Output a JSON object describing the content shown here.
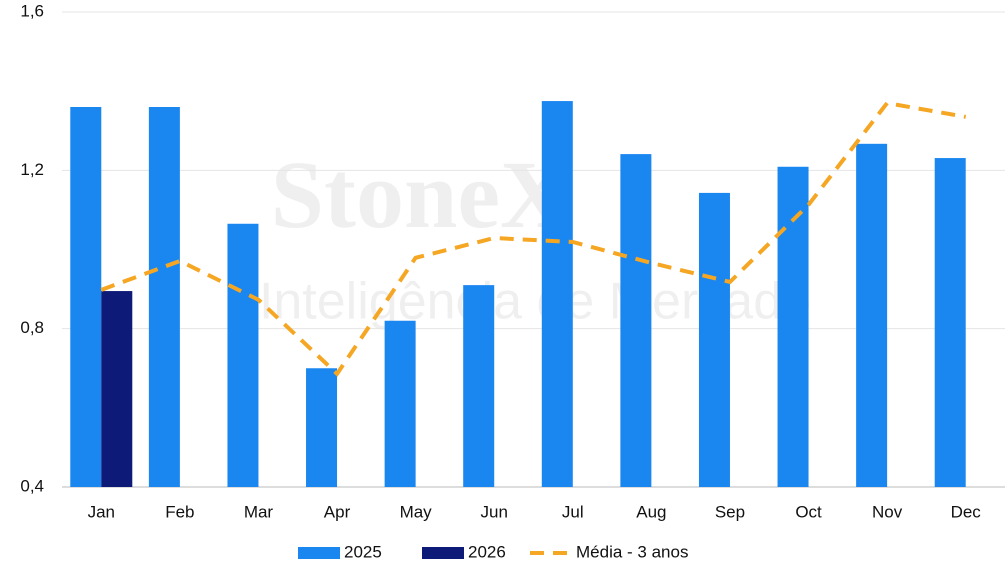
{
  "chart_data": {
    "type": "bar",
    "watermark": [
      "StoneX",
      "Inteligência de Mercado"
    ],
    "categories": [
      "Jan",
      "Feb",
      "Mar",
      "Apr",
      "May",
      "Jun",
      "Jul",
      "Aug",
      "Sep",
      "Oct",
      "Nov",
      "Dec"
    ],
    "series": [
      {
        "name": "2025",
        "color": "#1a86f0",
        "values": [
          1.36,
          1.36,
          1.065,
          0.7,
          0.82,
          0.91,
          1.375,
          1.241,
          1.143,
          1.209,
          1.267,
          1.231
        ]
      },
      {
        "name": "2026",
        "color": "#0d1a78",
        "values": [
          0.895,
          null,
          null,
          null,
          null,
          null,
          null,
          null,
          null,
          null,
          null,
          null
        ]
      },
      {
        "name": "Média - 3 anos",
        "color": "#f5a623",
        "type": "line",
        "dashed": true,
        "values": [
          0.898,
          0.971,
          0.873,
          0.686,
          0.979,
          1.029,
          1.019,
          0.966,
          0.918,
          1.113,
          1.37,
          1.335
        ]
      }
    ],
    "ylim": [
      0.4,
      1.6
    ],
    "yticks": [
      {
        "value": 0.4,
        "label": "0,4"
      },
      {
        "value": 0.8,
        "label": "0,8"
      },
      {
        "value": 1.2,
        "label": "1,2"
      },
      {
        "value": 1.6,
        "label": "1,6"
      }
    ],
    "grid": true,
    "legend": "bottom"
  }
}
